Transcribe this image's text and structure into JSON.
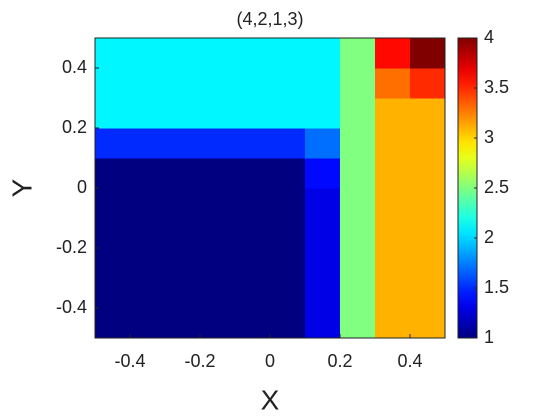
{
  "chart_data": {
    "type": "heatmap",
    "title": "(4,2,1,3)",
    "x_label": "X",
    "y_label": "Y",
    "x": [
      -0.45,
      -0.35,
      -0.25,
      -0.15,
      -0.05,
      0.05,
      0.15,
      0.25,
      0.35,
      0.45
    ],
    "y": [
      -0.45,
      -0.35,
      -0.25,
      -0.15,
      -0.05,
      0.05,
      0.15,
      0.25,
      0.35,
      0.45
    ],
    "z": [
      [
        1,
        1,
        1,
        1,
        1,
        1,
        1.3,
        2.5,
        3.1,
        3.1
      ],
      [
        1,
        1,
        1,
        1,
        1,
        1,
        1.3,
        2.5,
        3.1,
        3.1
      ],
      [
        1,
        1,
        1,
        1,
        1,
        1,
        1.3,
        2.5,
        3.1,
        3.1
      ],
      [
        1,
        1,
        1,
        1,
        1,
        1,
        1.3,
        2.5,
        3.1,
        3.1
      ],
      [
        1,
        1,
        1,
        1,
        1,
        1,
        1.3,
        2.5,
        3.1,
        3.1
      ],
      [
        1,
        1,
        1,
        1,
        1,
        1,
        1.4,
        2.5,
        3.1,
        3.1
      ],
      [
        1.5,
        1.5,
        1.5,
        1.5,
        1.5,
        1.5,
        1.7,
        2.5,
        3.1,
        3.1
      ],
      [
        2.1,
        2.1,
        2.1,
        2.1,
        2.1,
        2.1,
        2.1,
        2.5,
        3.1,
        3.1
      ],
      [
        2.1,
        2.1,
        2.1,
        2.1,
        2.1,
        2.1,
        2.1,
        2.5,
        3.3,
        3.5
      ],
      [
        2.1,
        2.1,
        2.1,
        2.1,
        2.1,
        2.1,
        2.1,
        2.5,
        3.6,
        4
      ]
    ],
    "xlim": [
      -0.5,
      0.5
    ],
    "ylim": [
      -0.5,
      0.5
    ],
    "xticks": [
      -0.4,
      -0.2,
      0,
      0.2,
      0.4
    ],
    "yticks": [
      -0.4,
      -0.2,
      0,
      0.2,
      0.4
    ],
    "clim": [
      1,
      4
    ],
    "cticks": [
      1,
      1.5,
      2,
      2.5,
      3,
      3.5,
      4
    ],
    "colormap": "jet"
  }
}
